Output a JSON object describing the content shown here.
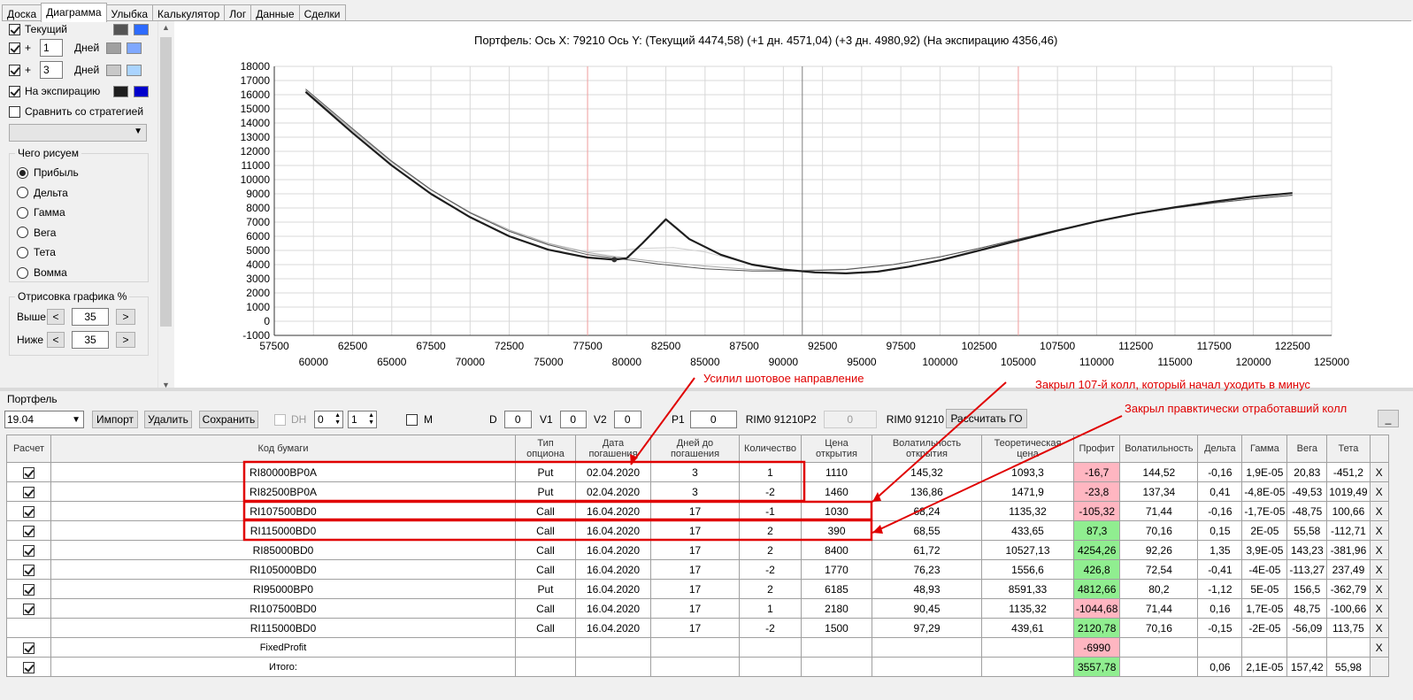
{
  "tabs": [
    "Доска",
    "Диаграмма",
    "Улыбка",
    "Калькулятор",
    "Лог",
    "Данные",
    "Сделки"
  ],
  "active_tab": 1,
  "left": {
    "rows": [
      {
        "label": "Текущий",
        "checked": true,
        "offset": null,
        "days": null,
        "colors": [
          "#555555",
          "#2e6bff"
        ]
      },
      {
        "label": "+",
        "checked": true,
        "offset": "1",
        "days": "Дней",
        "colors": [
          "#a0a0a0",
          "#7fa8ff"
        ]
      },
      {
        "label": "+",
        "checked": true,
        "offset": "3",
        "days": "Дней",
        "colors": [
          "#c8c8c8",
          "#aad4ff"
        ]
      },
      {
        "label": "На экспирацию",
        "checked": true,
        "offset": null,
        "days": null,
        "colors": [
          "#1e1e1e",
          "#0000cc"
        ]
      }
    ],
    "compare_label": "Сравнить со стратегией",
    "compare_checked": false,
    "draw_group_title": "Чего рисуем",
    "draw_options": [
      "Прибыль",
      "Дельта",
      "Гамма",
      "Вега",
      "Тета",
      "Вомма"
    ],
    "draw_selected": 0,
    "render_group_title": "Отрисовка графика %",
    "above_label": "Выше",
    "above_value": "35",
    "below_label": "Ниже",
    "below_value": "35",
    "btn_left": "<",
    "btn_right": ">"
  },
  "chart_title": "Портфель: Ось X: 79210 Ось Y:  (Текущий 4474,58)  (+1 дн. 4571,04)  (+3 дн. 4980,92)  (На экспирацию 4356,46)",
  "chart_data": {
    "type": "line",
    "x_range": [
      57500,
      125000
    ],
    "y_range": [
      -1000,
      18000
    ],
    "y_ticks": [
      "18000",
      "17000",
      "16000",
      "15000",
      "14000",
      "13000",
      "12000",
      "11000",
      "10000",
      "9000",
      "8000",
      "7000",
      "6000",
      "5000",
      "4000",
      "3000",
      "2000",
      "1000",
      "0",
      "-1000"
    ],
    "x_ticks_upper": [
      "57500",
      "62500",
      "67500",
      "72500",
      "77500",
      "82500",
      "87500",
      "92500",
      "97500",
      "102500",
      "107500",
      "112500",
      "117500",
      "122500"
    ],
    "x_ticks_lower": [
      "60000",
      "65000",
      "70000",
      "75000",
      "80000",
      "85000",
      "90000",
      "95000",
      "100000",
      "105000",
      "110000",
      "115000",
      "120000",
      "125000"
    ],
    "vertical_line_current": 91210,
    "vertical_lines_red": [
      77500,
      105000
    ],
    "series": [
      {
        "color": "#1e1e1e",
        "width": 2.2,
        "points": [
          [
            59500,
            16200
          ],
          [
            62500,
            13300
          ],
          [
            65000,
            11000
          ],
          [
            67500,
            9000
          ],
          [
            70000,
            7350
          ],
          [
            72500,
            6000
          ],
          [
            75000,
            5050
          ],
          [
            77500,
            4500
          ],
          [
            79210,
            4350
          ],
          [
            80000,
            4450
          ],
          [
            81000,
            5500
          ],
          [
            82500,
            7200
          ],
          [
            84000,
            5800
          ],
          [
            86000,
            4700
          ],
          [
            88000,
            4000
          ],
          [
            90000,
            3650
          ],
          [
            92000,
            3450
          ],
          [
            94000,
            3380
          ],
          [
            96000,
            3500
          ],
          [
            98000,
            3850
          ],
          [
            100000,
            4300
          ],
          [
            102500,
            5000
          ],
          [
            105000,
            5700
          ],
          [
            107500,
            6400
          ],
          [
            110000,
            7050
          ],
          [
            112500,
            7600
          ],
          [
            115000,
            8050
          ],
          [
            117500,
            8450
          ],
          [
            120000,
            8800
          ],
          [
            122500,
            9050
          ]
        ]
      },
      {
        "color": "#555555",
        "width": 1,
        "points": [
          [
            59500,
            16400
          ],
          [
            62500,
            13600
          ],
          [
            65000,
            11300
          ],
          [
            67500,
            9300
          ],
          [
            70000,
            7650
          ],
          [
            72500,
            6350
          ],
          [
            75000,
            5400
          ],
          [
            77500,
            4700
          ],
          [
            79210,
            4470
          ],
          [
            82000,
            4050
          ],
          [
            85000,
            3700
          ],
          [
            88000,
            3550
          ],
          [
            91000,
            3550
          ],
          [
            94000,
            3650
          ],
          [
            97000,
            4000
          ],
          [
            100000,
            4550
          ],
          [
            102500,
            5150
          ],
          [
            105000,
            5800
          ],
          [
            107500,
            6450
          ],
          [
            110000,
            7050
          ],
          [
            112500,
            7580
          ],
          [
            115000,
            8000
          ],
          [
            117500,
            8350
          ],
          [
            120000,
            8650
          ],
          [
            122500,
            8900
          ]
        ]
      },
      {
        "color": "#a8a8a8",
        "width": 1,
        "points": [
          [
            59500,
            16300
          ],
          [
            62500,
            13500
          ],
          [
            65000,
            11250
          ],
          [
            67500,
            9300
          ],
          [
            70000,
            7700
          ],
          [
            72500,
            6450
          ],
          [
            75000,
            5500
          ],
          [
            77500,
            4850
          ],
          [
            79210,
            4570
          ],
          [
            82000,
            4200
          ],
          [
            85000,
            3900
          ],
          [
            88000,
            3650
          ],
          [
            91000,
            3580
          ],
          [
            94000,
            3660
          ],
          [
            97000,
            4000
          ],
          [
            100000,
            4550
          ],
          [
            102500,
            5150
          ],
          [
            105000,
            5800
          ],
          [
            107500,
            6450
          ],
          [
            110000,
            7050
          ],
          [
            112500,
            7580
          ],
          [
            115000,
            8000
          ],
          [
            117500,
            8350
          ],
          [
            120000,
            8650
          ],
          [
            122500,
            8900
          ]
        ]
      },
      {
        "color": "#cfcfcf",
        "width": 1,
        "points": [
          [
            59500,
            16300
          ],
          [
            62500,
            13450
          ],
          [
            65000,
            11200
          ],
          [
            67500,
            9250
          ],
          [
            70000,
            7650
          ],
          [
            72500,
            6400
          ],
          [
            75000,
            5450
          ],
          [
            77500,
            4900
          ],
          [
            79210,
            4980
          ],
          [
            81000,
            5150
          ],
          [
            83000,
            5200
          ],
          [
            85000,
            4900
          ],
          [
            87000,
            4300
          ],
          [
            89000,
            3800
          ],
          [
            91000,
            3600
          ],
          [
            94000,
            3680
          ],
          [
            97000,
            4000
          ],
          [
            100000,
            4550
          ],
          [
            102500,
            5150
          ],
          [
            105000,
            5800
          ],
          [
            107500,
            6450
          ],
          [
            110000,
            7050
          ],
          [
            112500,
            7580
          ],
          [
            115000,
            8000
          ],
          [
            117500,
            8350
          ],
          [
            120000,
            8650
          ],
          [
            122500,
            8900
          ]
        ]
      }
    ],
    "marker": [
      79210,
      4350
    ]
  },
  "portfolio": {
    "label": "Портфель",
    "date_combo": "19.04",
    "import_btn": "Импорт",
    "delete_btn": "Удалить",
    "save_btn": "Сохранить",
    "dh_label": "DH",
    "dh_checked": false,
    "spin1": "0",
    "spin2": "1",
    "m_label": "M",
    "m_checked": false,
    "d_label": "D",
    "d_value": "0",
    "v1_label": "V1",
    "v1_value": "0",
    "v2_label": "V2",
    "v2_value": "0",
    "p1_label": "P1",
    "p1_value": "0",
    "p1_code": "RIM0 91210",
    "p2_label": "P2",
    "p2_value": "0",
    "p2_code": "RIM0 91210",
    "calc_btn": "Рассчитать ГО",
    "minimize_btn": "_"
  },
  "table": {
    "headers": [
      "Расчет",
      "Код бумаги",
      "Тип опциона",
      "Дата погашения",
      "Дней до погашения",
      "Количество",
      "Цена открытия",
      "Волатильность открытия",
      "Теоретическая цена",
      "Профит",
      "Волатильность",
      "Дельта",
      "Гамма",
      "Вега",
      "Тета",
      ""
    ],
    "rows": [
      {
        "chk": true,
        "code": "RI80000BP0A",
        "type": "Put",
        "date": "02.04.2020",
        "days": "3",
        "qty": "1",
        "open": "1110",
        "vol_open": "145,32",
        "theo": "1093,3",
        "profit": "-16,7",
        "pc": "neg",
        "vol": "144,52",
        "delta": "-0,16",
        "gamma": "1,9E-05",
        "vega": "20,83",
        "theta": "-451,2",
        "x": "X"
      },
      {
        "chk": true,
        "code": "RI82500BP0A",
        "type": "Put",
        "date": "02.04.2020",
        "days": "3",
        "qty": "-2",
        "open": "1460",
        "vol_open": "136,86",
        "theo": "1471,9",
        "profit": "-23,8",
        "pc": "neg",
        "vol": "137,34",
        "delta": "0,41",
        "gamma": "-4,8E-05",
        "vega": "-49,53",
        "theta": "1019,49",
        "x": "X"
      },
      {
        "chk": true,
        "code": "RI107500BD0",
        "type": "Call",
        "date": "16.04.2020",
        "days": "17",
        "qty": "-1",
        "open": "1030",
        "vol_open": "68,24",
        "theo": "1135,32",
        "profit": "-105,32",
        "pc": "neg",
        "vol": "71,44",
        "delta": "-0,16",
        "gamma": "-1,7E-05",
        "vega": "-48,75",
        "theta": "100,66",
        "x": "X"
      },
      {
        "chk": true,
        "code": "RI115000BD0",
        "type": "Call",
        "date": "16.04.2020",
        "days": "17",
        "qty": "2",
        "open": "390",
        "vol_open": "68,55",
        "theo": "433,65",
        "profit": "87,3",
        "pc": "pos",
        "vol": "70,16",
        "delta": "0,15",
        "gamma": "2E-05",
        "vega": "55,58",
        "theta": "-112,71",
        "x": "X"
      },
      {
        "chk": true,
        "code": "RI85000BD0",
        "type": "Call",
        "date": "16.04.2020",
        "days": "17",
        "qty": "2",
        "open": "8400",
        "vol_open": "61,72",
        "theo": "10527,13",
        "profit": "4254,26",
        "pc": "pos",
        "vol": "92,26",
        "delta": "1,35",
        "gamma": "3,9E-05",
        "vega": "143,23",
        "theta": "-381,96",
        "x": "X"
      },
      {
        "chk": true,
        "code": "RI105000BD0",
        "type": "Call",
        "date": "16.04.2020",
        "days": "17",
        "qty": "-2",
        "open": "1770",
        "vol_open": "76,23",
        "theo": "1556,6",
        "profit": "426,8",
        "pc": "pos",
        "vol": "72,54",
        "delta": "-0,41",
        "gamma": "-4E-05",
        "vega": "-113,27",
        "theta": "237,49",
        "x": "X"
      },
      {
        "chk": true,
        "code": "RI95000BP0",
        "type": "Put",
        "date": "16.04.2020",
        "days": "17",
        "qty": "2",
        "open": "6185",
        "vol_open": "48,93",
        "theo": "8591,33",
        "profit": "4812,66",
        "pc": "pos",
        "vol": "80,2",
        "delta": "-1,12",
        "gamma": "5E-05",
        "vega": "156,5",
        "theta": "-362,79",
        "x": "X"
      },
      {
        "chk": true,
        "code": "RI107500BD0",
        "type": "Call",
        "date": "16.04.2020",
        "days": "17",
        "qty": "1",
        "open": "2180",
        "vol_open": "90,45",
        "theo": "1135,32",
        "profit": "-1044,68",
        "pc": "neg",
        "vol": "71,44",
        "delta": "0,16",
        "gamma": "1,7E-05",
        "vega": "48,75",
        "theta": "-100,66",
        "x": "X"
      },
      {
        "chk": false,
        "code": "RI115000BD0",
        "type": "Call",
        "date": "16.04.2020",
        "days": "17",
        "qty": "-2",
        "open": "1500",
        "vol_open": "97,29",
        "theo": "439,61",
        "profit": "2120,78",
        "pc": "pos",
        "vol": "70,16",
        "delta": "-0,15",
        "gamma": "-2E-05",
        "vega": "-56,09",
        "theta": "113,75",
        "x": "X"
      },
      {
        "chk": true,
        "code": "FixedProfit",
        "type": "",
        "date": "",
        "days": "",
        "qty": "",
        "open": "",
        "vol_open": "",
        "theo": "",
        "profit": "-6990",
        "pc": "neg",
        "vol": "",
        "delta": "",
        "gamma": "",
        "vega": "",
        "theta": "",
        "x": "X"
      },
      {
        "chk": true,
        "code": "Итого:",
        "type": "",
        "date": "",
        "days": "",
        "qty": "",
        "open": "",
        "vol_open": "",
        "theo": "",
        "profit": "3557,78",
        "pc": "pos",
        "vol": "",
        "delta": "0,06",
        "gamma": "2,1E-05",
        "vega": "157,42",
        "theta": "55,98",
        "x": ""
      }
    ]
  },
  "annotations": {
    "a1": "Усилил шотовое направление",
    "a2": "Закрыл 107-й колл, который начал уходить в минус",
    "a3": "Закрыл правктически отработавший колл",
    "color": "#e00000"
  }
}
